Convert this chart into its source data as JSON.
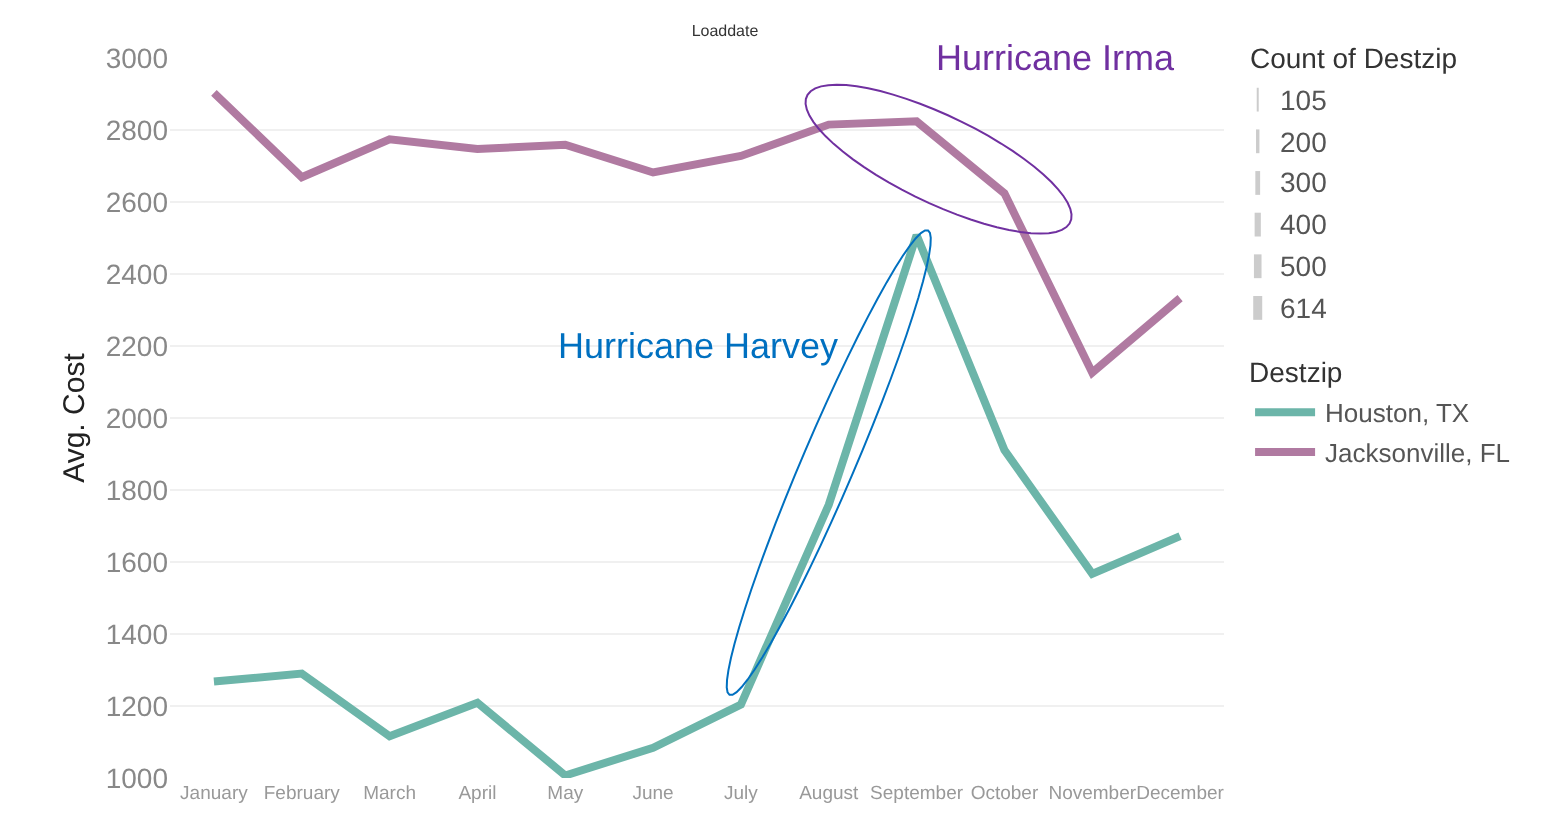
{
  "chart_data": {
    "type": "line",
    "title": "Loaddate",
    "ylabel": "Avg. Cost",
    "legend_title": "Destzip",
    "categories": [
      "January",
      "February",
      "March",
      "April",
      "May",
      "June",
      "July",
      "August",
      "September",
      "October",
      "November",
      "December"
    ],
    "series": [
      {
        "name": "Houston, TX",
        "color": "#6cb5a9",
        "values": [
          1268,
          1290,
          1116,
          1209,
          1007,
          1084,
          1204,
          1759,
          2508,
          1911,
          1567,
          1672
        ]
      },
      {
        "name": "Jacksonville, FL",
        "color": "#b07aa1",
        "values": [
          2903,
          2669,
          2774,
          2747,
          2759,
          2682,
          2728,
          2815,
          2824,
          2624,
          2126,
          2333
        ]
      }
    ],
    "ylim": [
      1000,
      3000
    ],
    "yticks": [
      1000,
      1200,
      1400,
      1600,
      1800,
      2000,
      2200,
      2400,
      2600,
      2800,
      3000
    ],
    "grid": "y",
    "legend": "right",
    "marker": "none",
    "line_style": "solid",
    "annotations": [
      "Hurricane Irma",
      "Hurricane Harvey",
      "Count of Destzip",
      "105",
      "200",
      "300",
      "400",
      "500",
      "614"
    ]
  }
}
